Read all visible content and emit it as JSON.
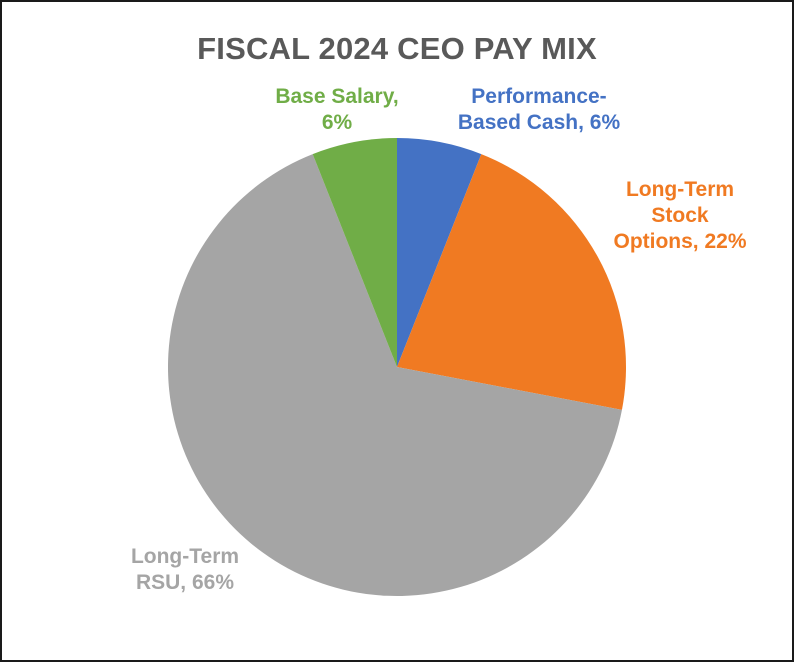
{
  "chart_data": {
    "type": "pie",
    "title": "FISCAL 2024 CEO PAY MIX",
    "slices": [
      {
        "name": "Performance-Based Cash",
        "label": "Performance-\nBased Cash, 6%",
        "value": 6,
        "color": "#4472c4"
      },
      {
        "name": "Long-Term Stock Options",
        "label": "Long-Term\nStock\nOptions, 22%",
        "value": 22,
        "color": "#f07a22"
      },
      {
        "name": "Long-Term RSU",
        "label": "Long-Term\nRSU, 66%",
        "value": 66,
        "color": "#a5a5a5"
      },
      {
        "name": "Base Salary",
        "label": "Base Salary,\n6%",
        "value": 6,
        "color": "#70ad47"
      }
    ],
    "start": "12 o'clock",
    "direction": "clockwise",
    "legend": "none (data labels outside slices)"
  }
}
